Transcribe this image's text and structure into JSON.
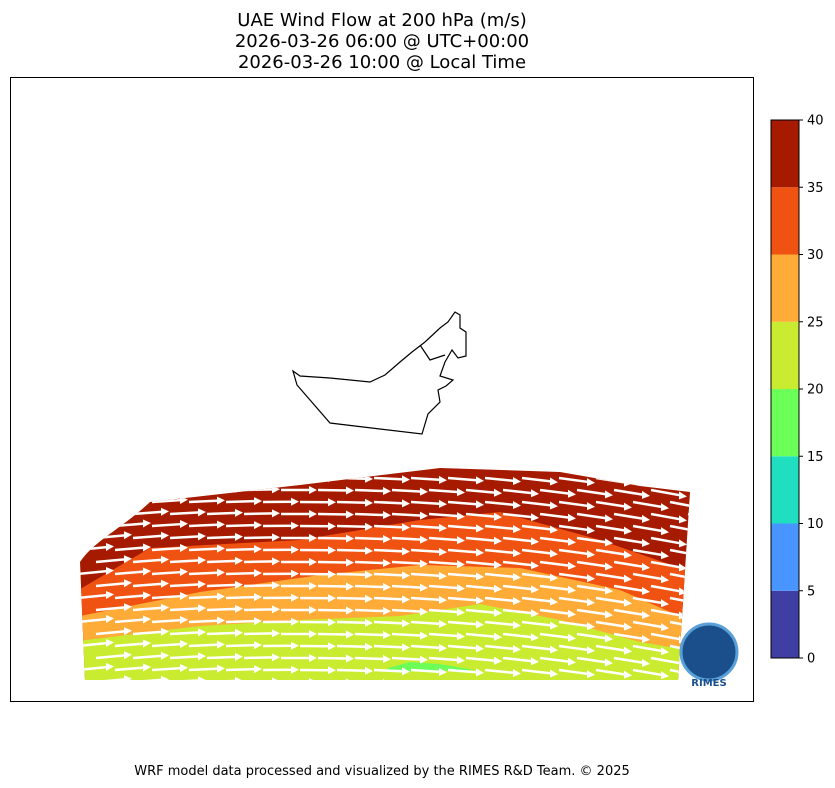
{
  "title": [
    "UAE Wind Flow at 200 hPa (m/s)",
    "2026-03-26 06:00 @ UTC+00:00",
    "2026-03-26 10:00 @ Local Time"
  ],
  "colorbar": {
    "ticks": [
      0,
      5,
      10,
      15,
      20,
      25,
      30,
      35,
      40
    ],
    "colors": [
      "#3f3fa3",
      "#4895ff",
      "#1fdfc0",
      "#6bff58",
      "#c9eb30",
      "#ffab38",
      "#f05212",
      "#a61a00"
    ]
  },
  "logo": "RIMES",
  "footer": "WRF model data processed and visualized by the RIMES R&D Team. © 2025"
}
